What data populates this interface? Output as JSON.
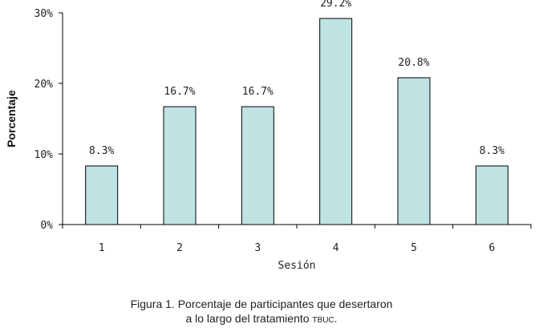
{
  "chart_data": {
    "type": "bar",
    "categories": [
      "1",
      "2",
      "3",
      "4",
      "5",
      "6"
    ],
    "values": [
      8.3,
      16.7,
      16.7,
      29.2,
      20.8,
      8.3
    ],
    "labels": [
      "8.3%",
      "16.7%",
      "16.7%",
      "29.2%",
      "20.8%",
      "8.3%"
    ],
    "ylim": [
      0,
      30
    ],
    "yticks": [
      "0%",
      "10%",
      "20%",
      "30%"
    ],
    "xlabel": "Sesión",
    "ylabel": "Porcentaje",
    "bar_color": "#bfe3e3"
  },
  "caption": {
    "line1": "Figura 1. Porcentaje de participantes que desertaron",
    "line2": "a lo largo del tratamiento ",
    "abbr": "TBUC",
    "end": "."
  }
}
